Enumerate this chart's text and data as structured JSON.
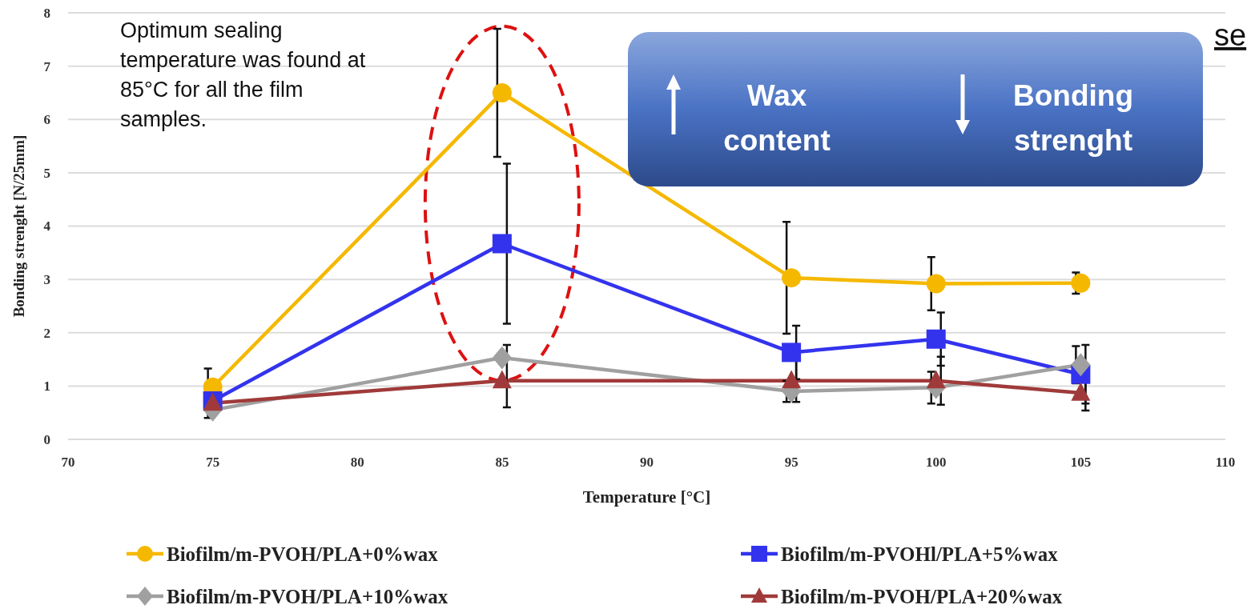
{
  "chart_data": {
    "type": "line",
    "xlabel": "Temperature [°C]",
    "ylabel": "Bonding strenght [N/25mm]",
    "x": [
      75,
      85,
      95,
      100,
      105
    ],
    "series": [
      {
        "name": "Biofilm/m-PVOH/PLA+0%wax",
        "color": "#f5b800",
        "marker": "circle",
        "values": [
          0.98,
          6.5,
          3.03,
          2.92,
          2.93
        ],
        "errors": [
          0.35,
          1.2,
          1.05,
          0.5,
          0.2
        ]
      },
      {
        "name": "Biofilm/m-PVOHl/PLA+5%wax",
        "color": "#3333ee",
        "marker": "square",
        "values": [
          0.72,
          3.67,
          1.63,
          1.88,
          1.22
        ],
        "errors": [
          null,
          1.5,
          0.5,
          0.5,
          0.55
        ]
      },
      {
        "name": "Biofilm/m-PVOH/PLA+10%wax",
        "color": "#a0a0a0",
        "marker": "diamond",
        "values": [
          0.55,
          1.53,
          0.9,
          0.97,
          1.4
        ],
        "errors": [
          0.15,
          null,
          0.2,
          0.3,
          0.35
        ]
      },
      {
        "name": "Biofilm/m-PVOH/PLA+20%wax",
        "color": "#a03a3a",
        "marker": "triangle",
        "values": [
          0.68,
          1.1,
          1.1,
          1.1,
          0.87
        ],
        "errors": [
          null,
          [
            0.6,
            1.77
          ],
          0.4,
          0.45,
          0.33
        ]
      }
    ],
    "xlim": [
      70,
      110
    ],
    "xticks": [
      70,
      75,
      80,
      85,
      90,
      95,
      100,
      105,
      110
    ],
    "ylim": [
      0,
      8
    ],
    "yticks": [
      0,
      1,
      2,
      3,
      4,
      5,
      6,
      7,
      8
    ],
    "grid": "y",
    "legend": "bottom",
    "line_style": "solid",
    "annotations": [
      "Optimum sealing temperature was found at 85°C  for all the film samples.",
      "Wax content",
      "Bonding strenght",
      "se"
    ]
  }
}
